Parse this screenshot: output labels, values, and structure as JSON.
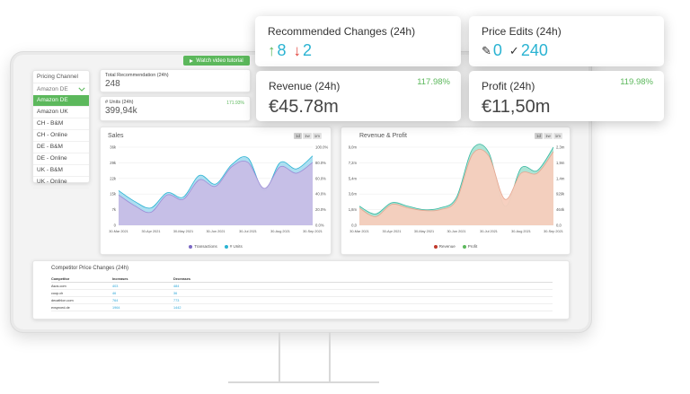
{
  "video_button": {
    "label": "Watch video tutorial"
  },
  "pricing_channel": {
    "header": "Pricing Channel",
    "selected": "Amazon DE",
    "options": [
      "Amazon DE",
      "Amazon UK",
      "CH - B&M",
      "CH - Online",
      "DE - B&M",
      "DE - Online",
      "UK - B&M",
      "UK - Online"
    ],
    "active_index": 0
  },
  "total_recommendation": {
    "label": "Total Recommendation (24h)",
    "value": "248"
  },
  "units": {
    "label": "# Units (24h)",
    "value": "399,94k",
    "pct": "171.93%"
  },
  "recommended_changes": {
    "label": "Recommended Changes (24h)",
    "up": "8",
    "down": "2"
  },
  "price_edits": {
    "label": "Price Edits (24h)",
    "edits": "0",
    "confirmed": "240"
  },
  "revenue": {
    "label": "Revenue (24h)",
    "value": "€45.78m",
    "pct": "117.98%"
  },
  "profit": {
    "label": "Profit (24h)",
    "value": "€11,50m",
    "pct": "119.98%"
  },
  "range_buttons": [
    "1d",
    "1w",
    "1m"
  ],
  "colors": {
    "accent_green": "#5cb85c",
    "teal": "#2ab3d2",
    "red": "#e2433c",
    "sales_area": "#c7bde6",
    "units_area": "#a9dcf0",
    "revenue_area": "#f7cdbd",
    "profit_area": "#a8e3d3"
  },
  "chart_data": [
    {
      "type": "area",
      "title": "Sales",
      "x": [
        "30-Mar 2021",
        "15-Apr 2021",
        "30-Apr 2021",
        "15-May 2021",
        "30-May 2021",
        "15-Jun 2021",
        "30-Jun 2021",
        "15-Jul 2021",
        "30-Jul 2021",
        "15-Aug 2021",
        "30-Aug 2021",
        "15-Sep 2021",
        "20-Sep 2021"
      ],
      "x_tick_labels": [
        "30-Mar 2021",
        "30-Apr 2021",
        "30-May 2021",
        "30-Jun 2021",
        "30-Jul 2021",
        "30-Aug 2021",
        "30-Sep 2021"
      ],
      "y_left_ticks": [
        "0",
        "7k",
        "15k",
        "22k",
        "29k",
        "36k"
      ],
      "y_right_ticks": [
        "0.0%",
        "20.0%",
        "40.0%",
        "60.0%",
        "80.0%",
        "100.0%"
      ],
      "ylim": [
        0,
        36000
      ],
      "series": [
        {
          "name": "Transactions",
          "values": [
            14000,
            9000,
            6000,
            14000,
            12000,
            21000,
            18000,
            27000,
            29000,
            17000,
            27000,
            24000,
            29000
          ]
        },
        {
          "name": "# Units",
          "values": [
            16000,
            11000,
            8000,
            15000,
            13000,
            23000,
            19000,
            28000,
            31000,
            16000,
            29000,
            26000,
            32000
          ]
        }
      ],
      "legend_position": "bottom"
    },
    {
      "type": "area",
      "title": "Revenue & Profit",
      "x": [
        "30-Mar 2021",
        "15-Apr 2021",
        "30-Apr 2021",
        "15-May 2021",
        "30-May 2021",
        "15-Jun 2021",
        "30-Jun 2021",
        "15-Jul 2021",
        "30-Jul 2021",
        "15-Aug 2021",
        "30-Aug 2021",
        "15-Sep 2021",
        "20-Sep 2021"
      ],
      "x_tick_labels": [
        "30-Mar 2021",
        "30-Apr 2021",
        "30-May 2021",
        "30-Jun 2021",
        "30-Jul 2021",
        "30-Aug 2021",
        "30-Sep 2021"
      ],
      "y_left_ticks": [
        "0,0",
        "1,8m",
        "3,6m",
        "5,4m",
        "7,2m",
        "9,0m"
      ],
      "y_right_ticks": [
        "0,0",
        "464k",
        "929k",
        "1,4m",
        "1,9m",
        "2,3m"
      ],
      "ylim": [
        0,
        9000000
      ],
      "series": [
        {
          "name": "Revenue",
          "values": [
            2000000,
            1000000,
            2400000,
            2000000,
            1700000,
            1800000,
            2900000,
            8200000,
            8000000,
            3000000,
            6000000,
            6000000,
            8500000
          ]
        },
        {
          "name": "Profit",
          "values": [
            2200000,
            1300000,
            2600000,
            2200000,
            1800000,
            2000000,
            3200000,
            8800000,
            8400000,
            2200000,
            6600000,
            6300000,
            9000000
          ]
        }
      ],
      "legend_position": "bottom"
    }
  ],
  "competitor": {
    "title": "Competitor Price Changes (24h)",
    "columns": [
      "Competitor",
      "Increases",
      "Decreases"
    ],
    "rows": [
      [
        "Asos.com",
        "403",
        "484"
      ],
      [
        "coop.ch",
        "46",
        "36"
      ],
      [
        "decathlon.com",
        "764",
        "773"
      ],
      [
        "exsprced.de",
        "1964",
        "1442"
      ]
    ]
  }
}
